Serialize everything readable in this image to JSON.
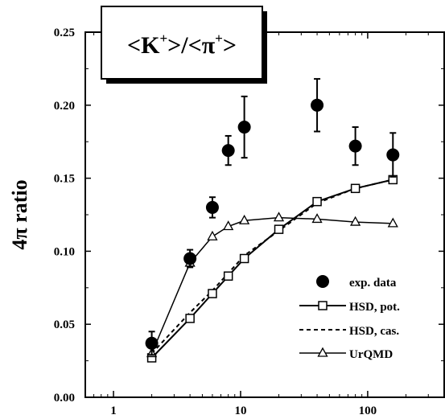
{
  "chart_data": {
    "type": "scatter",
    "title": "<K⁺>/<π⁺>",
    "title_parts": {
      "open": "<K",
      "sup1": "+",
      "mid": ">/<π",
      "sup2": "+",
      "close": ">"
    },
    "xlabel": "",
    "ylabel": "4π ratio",
    "x_scale": "log",
    "xlim": [
      0.6,
      400
    ],
    "ylim": [
      0,
      0.25
    ],
    "x_ticks": [
      1,
      10,
      100
    ],
    "x_tick_labels": [
      "1",
      "10",
      "100"
    ],
    "y_ticks": [
      0,
      0.05,
      0.1,
      0.15,
      0.2,
      0.25
    ],
    "y_tick_labels": [
      "0.00",
      "0.05",
      "0.10",
      "0.15",
      "0.20",
      "0.25"
    ],
    "legend_position": "bottom-right",
    "series": [
      {
        "name": "exp. data",
        "marker": "filled-circle",
        "x": [
          2,
          4,
          6,
          8,
          10.7,
          40,
          80,
          158
        ],
        "y": [
          0.037,
          0.095,
          0.13,
          0.169,
          0.185,
          0.2,
          0.172,
          0.166
        ],
        "yerr": [
          0.008,
          0.006,
          0.007,
          0.01,
          0.021,
          0.018,
          0.013,
          0.015
        ]
      },
      {
        "name": "HSD, pot.",
        "marker": "open-square",
        "line": "solid",
        "x": [
          2,
          4,
          6,
          8,
          10.7,
          20,
          40,
          80,
          158
        ],
        "y": [
          0.027,
          0.054,
          0.071,
          0.083,
          0.095,
          0.115,
          0.134,
          0.143,
          0.149
        ]
      },
      {
        "name": "HSD, cas.",
        "line": "dashed",
        "x": [
          2,
          4,
          6,
          8,
          10.7,
          20,
          40,
          80,
          158
        ],
        "y": [
          0.03,
          0.058,
          0.073,
          0.085,
          0.097,
          0.114,
          0.133,
          0.143,
          0.149
        ]
      },
      {
        "name": "UrQMD",
        "marker": "open-triangle",
        "line": "solid",
        "x": [
          2,
          4,
          6,
          8,
          10.7,
          20,
          40,
          80,
          158
        ],
        "y": [
          0.03,
          0.092,
          0.11,
          0.117,
          0.121,
          0.123,
          0.122,
          0.12,
          0.119
        ]
      }
    ]
  }
}
